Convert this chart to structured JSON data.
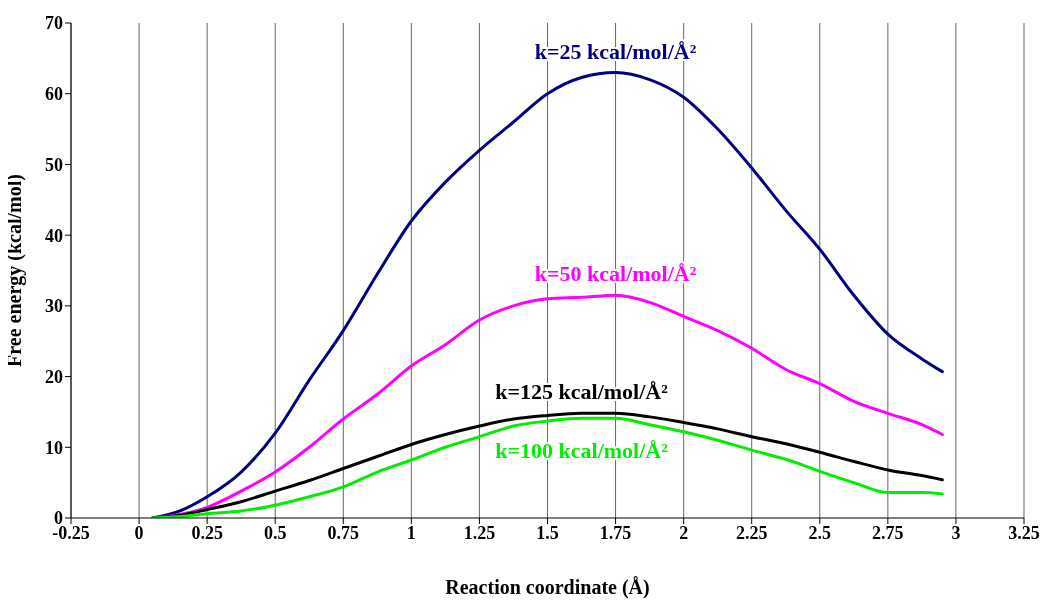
{
  "chart_data": {
    "type": "line",
    "xlabel": "Reaction coordinate (Å)",
    "ylabel": "Free energy (kcal/mol)",
    "x": [
      0.05,
      0.15,
      0.25,
      0.375,
      0.5,
      0.625,
      0.75,
      0.875,
      1.0,
      1.125,
      1.25,
      1.375,
      1.5,
      1.625,
      1.75,
      1.875,
      2.0,
      2.125,
      2.25,
      2.375,
      2.5,
      2.625,
      2.75,
      2.875,
      2.95
    ],
    "series": [
      {
        "name": "k=25 kcal/mol/Å²",
        "color": "#000080",
        "values": [
          0,
          1,
          3,
          6.5,
          12,
          19.5,
          26.5,
          34.5,
          42,
          47.5,
          52,
          56,
          60,
          62.3,
          63,
          62,
          59.5,
          55,
          49.5,
          43.5,
          38,
          31.5,
          26,
          22.5,
          20.7
        ]
      },
      {
        "name": "k=50 kcal/mol/Å²",
        "color": "#ff00ff",
        "values": [
          0,
          null,
          1.5,
          3.8,
          6.5,
          10,
          14,
          17.5,
          21.5,
          24.5,
          28,
          30,
          31,
          31.2,
          31.5,
          30.5,
          28.5,
          26.5,
          24,
          21,
          19,
          16.5,
          14.8,
          13.2,
          11.8
        ]
      },
      {
        "name": "k=125 kcal/mol/Å²",
        "color": "#000000",
        "values": [
          0,
          0.4,
          1.2,
          2.3,
          3.8,
          5.3,
          7,
          8.7,
          10.4,
          11.8,
          13,
          14,
          14.5,
          14.8,
          14.8,
          14.3,
          13.5,
          12.6,
          11.5,
          10.5,
          9.3,
          8,
          6.8,
          6,
          5.4
        ]
      },
      {
        "name": "k=100 kcal/mol/Å²",
        "color": "#00ee00",
        "values": [
          0,
          0.2,
          0.6,
          1,
          1.8,
          3,
          4.4,
          6.5,
          8.2,
          10,
          11.5,
          13,
          13.7,
          14.1,
          14.1,
          13.2,
          12.2,
          11,
          9.6,
          8.3,
          6.6,
          5,
          3.6,
          3.6,
          3.4
        ]
      }
    ],
    "xlim": [
      -0.25,
      3.25
    ],
    "xticks": [
      -0.25,
      0,
      0.25,
      0.5,
      0.75,
      1,
      1.25,
      1.5,
      1.75,
      2,
      2.25,
      2.5,
      2.75,
      3,
      3.25
    ],
    "ylim": [
      0,
      70
    ],
    "yticks": [
      0,
      10,
      20,
      30,
      40,
      50,
      60,
      70
    ],
    "grid": "x",
    "marker": "none",
    "line_style": "solid"
  }
}
